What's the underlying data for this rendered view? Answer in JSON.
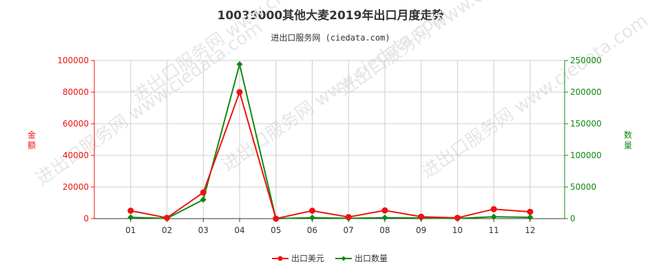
{
  "chart_title": "10039000其他大麦2019年出口月度走势",
  "source": "进出口服务网 (ciedata.com)",
  "watermark": "进出口服务网 www.ciedata.com",
  "colors": {
    "amount": "#ee1111",
    "quantity": "#118811",
    "grid": "#cccccc",
    "axis": "#333333"
  },
  "chart_data": {
    "type": "line",
    "title": "10039000其他大麦2019年出口月度走势",
    "categories": [
      "01",
      "02",
      "03",
      "04",
      "05",
      "06",
      "07",
      "08",
      "09",
      "10",
      "11",
      "12"
    ],
    "y_left": {
      "label": "金额",
      "min": 0,
      "max": 100000,
      "ticks": [
        "0",
        "20000",
        "40000",
        "60000",
        "80000",
        "100000"
      ]
    },
    "y_right": {
      "label": "数量",
      "min": 0,
      "max": 250000,
      "ticks": [
        "0",
        "50000",
        "100000",
        "150000",
        "200000",
        "250000"
      ]
    },
    "series": [
      {
        "name": "出口美元",
        "axis": "left",
        "marker": "circle",
        "values": [
          5000,
          500,
          16500,
          80000,
          0,
          5000,
          1000,
          5200,
          1200,
          500,
          6000,
          4300
        ]
      },
      {
        "name": "出口数量",
        "axis": "right",
        "marker": "diamond",
        "values": [
          2000,
          300,
          30000,
          244000,
          0,
          1500,
          500,
          1500,
          1000,
          300,
          3000,
          2000
        ]
      }
    ],
    "legend_position": "bottom",
    "grid": true
  }
}
